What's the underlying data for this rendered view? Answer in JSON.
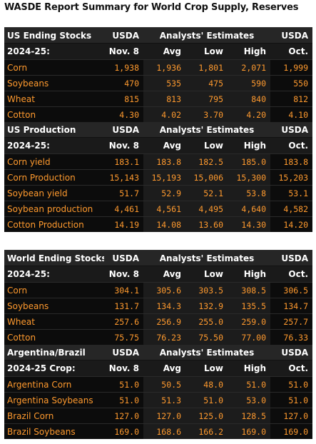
{
  "page_title": "WASDE Report Summary for World Crop Supply, Reserves",
  "table1": {
    "section1": {
      "title": "US Ending Stocks",
      "subtitle": "2024-25:",
      "col_usda": "USDA",
      "col_est": "Analysts' Estimates",
      "col_usda2": "USDA",
      "sub_cols": [
        "Nov. 8",
        "Avg",
        "Low",
        "High",
        "Oct."
      ],
      "rows": [
        {
          "label": "Corn",
          "values": [
            "1,938",
            "1,936",
            "1,801",
            "2,071",
            "1,999"
          ]
        },
        {
          "label": "Soybeans",
          "values": [
            "470",
            "535",
            "475",
            "590",
            "550"
          ]
        },
        {
          "label": "Wheat",
          "values": [
            "815",
            "813",
            "795",
            "840",
            "812"
          ]
        },
        {
          "label": "Cotton",
          "values": [
            "4.30",
            "4.02",
            "3.70",
            "4.20",
            "4.10"
          ]
        }
      ]
    },
    "section2": {
      "title": "US Production",
      "subtitle": "2024-25:",
      "col_usda": "USDA",
      "col_est": "Analysts' Estimates",
      "col_usda2": "USDA",
      "sub_cols": [
        "Nov. 8",
        "Avg",
        "Low",
        "High",
        "Oct."
      ],
      "rows": [
        {
          "label": "Corn yield",
          "values": [
            "183.1",
            "183.8",
            "182.5",
            "185.0",
            "183.8"
          ]
        },
        {
          "label": "Corn Production",
          "values": [
            "15,143",
            "15,193",
            "15,006",
            "15,300",
            "15,203"
          ]
        },
        {
          "label": "Soybean yield",
          "values": [
            "51.7",
            "52.9",
            "52.1",
            "53.8",
            "53.1"
          ]
        },
        {
          "label": "Soybean production",
          "values": [
            "4,461",
            "4,561",
            "4,495",
            "4,640",
            "4,582"
          ]
        },
        {
          "label": "Cotton Production",
          "values": [
            "14.19",
            "14.08",
            "13.60",
            "14.30",
            "14.20"
          ]
        }
      ]
    }
  },
  "table2": {
    "section1": {
      "title": "World Ending Stocks",
      "subtitle": "2024-25:",
      "col_usda": "USDA",
      "col_est": "Analysts' Estimates",
      "col_usda2": "USDA",
      "sub_cols": [
        "Nov. 8",
        "Avg",
        "Low",
        "High",
        "Oct."
      ],
      "rows": [
        {
          "label": "Corn",
          "values": [
            "304.1",
            "305.6",
            "303.5",
            "308.5",
            "306.5"
          ]
        },
        {
          "label": "Soybeans",
          "values": [
            "131.7",
            "134.3",
            "132.9",
            "135.5",
            "134.7"
          ]
        },
        {
          "label": "Wheat",
          "values": [
            "257.6",
            "256.9",
            "255.0",
            "259.0",
            "257.7"
          ]
        },
        {
          "label": "Cotton",
          "values": [
            "75.75",
            "76.23",
            "75.50",
            "77.00",
            "76.33"
          ]
        }
      ]
    },
    "section2": {
      "title": "Argentina/Brazil",
      "subtitle": "2024-25 Crop:",
      "col_usda": "USDA",
      "col_est": "Analysts' Estimates",
      "col_usda2": "USDA",
      "sub_cols": [
        "Nov. 8",
        "Avg",
        "Low",
        "High",
        "Oct."
      ],
      "rows": [
        {
          "label": "Argentina Corn",
          "values": [
            "51.0",
            "50.5",
            "48.0",
            "51.0",
            "51.0"
          ]
        },
        {
          "label": "Argentina Soybeans",
          "values": [
            "51.0",
            "51.3",
            "51.0",
            "53.0",
            "51.0"
          ]
        },
        {
          "label": "Brazil Corn",
          "values": [
            "127.0",
            "127.0",
            "125.0",
            "128.5",
            "127.0"
          ]
        },
        {
          "label": "Brazil Soybeans",
          "values": [
            "169.0",
            "168.6",
            "166.2",
            "169.0",
            "169.0"
          ]
        }
      ]
    }
  }
}
